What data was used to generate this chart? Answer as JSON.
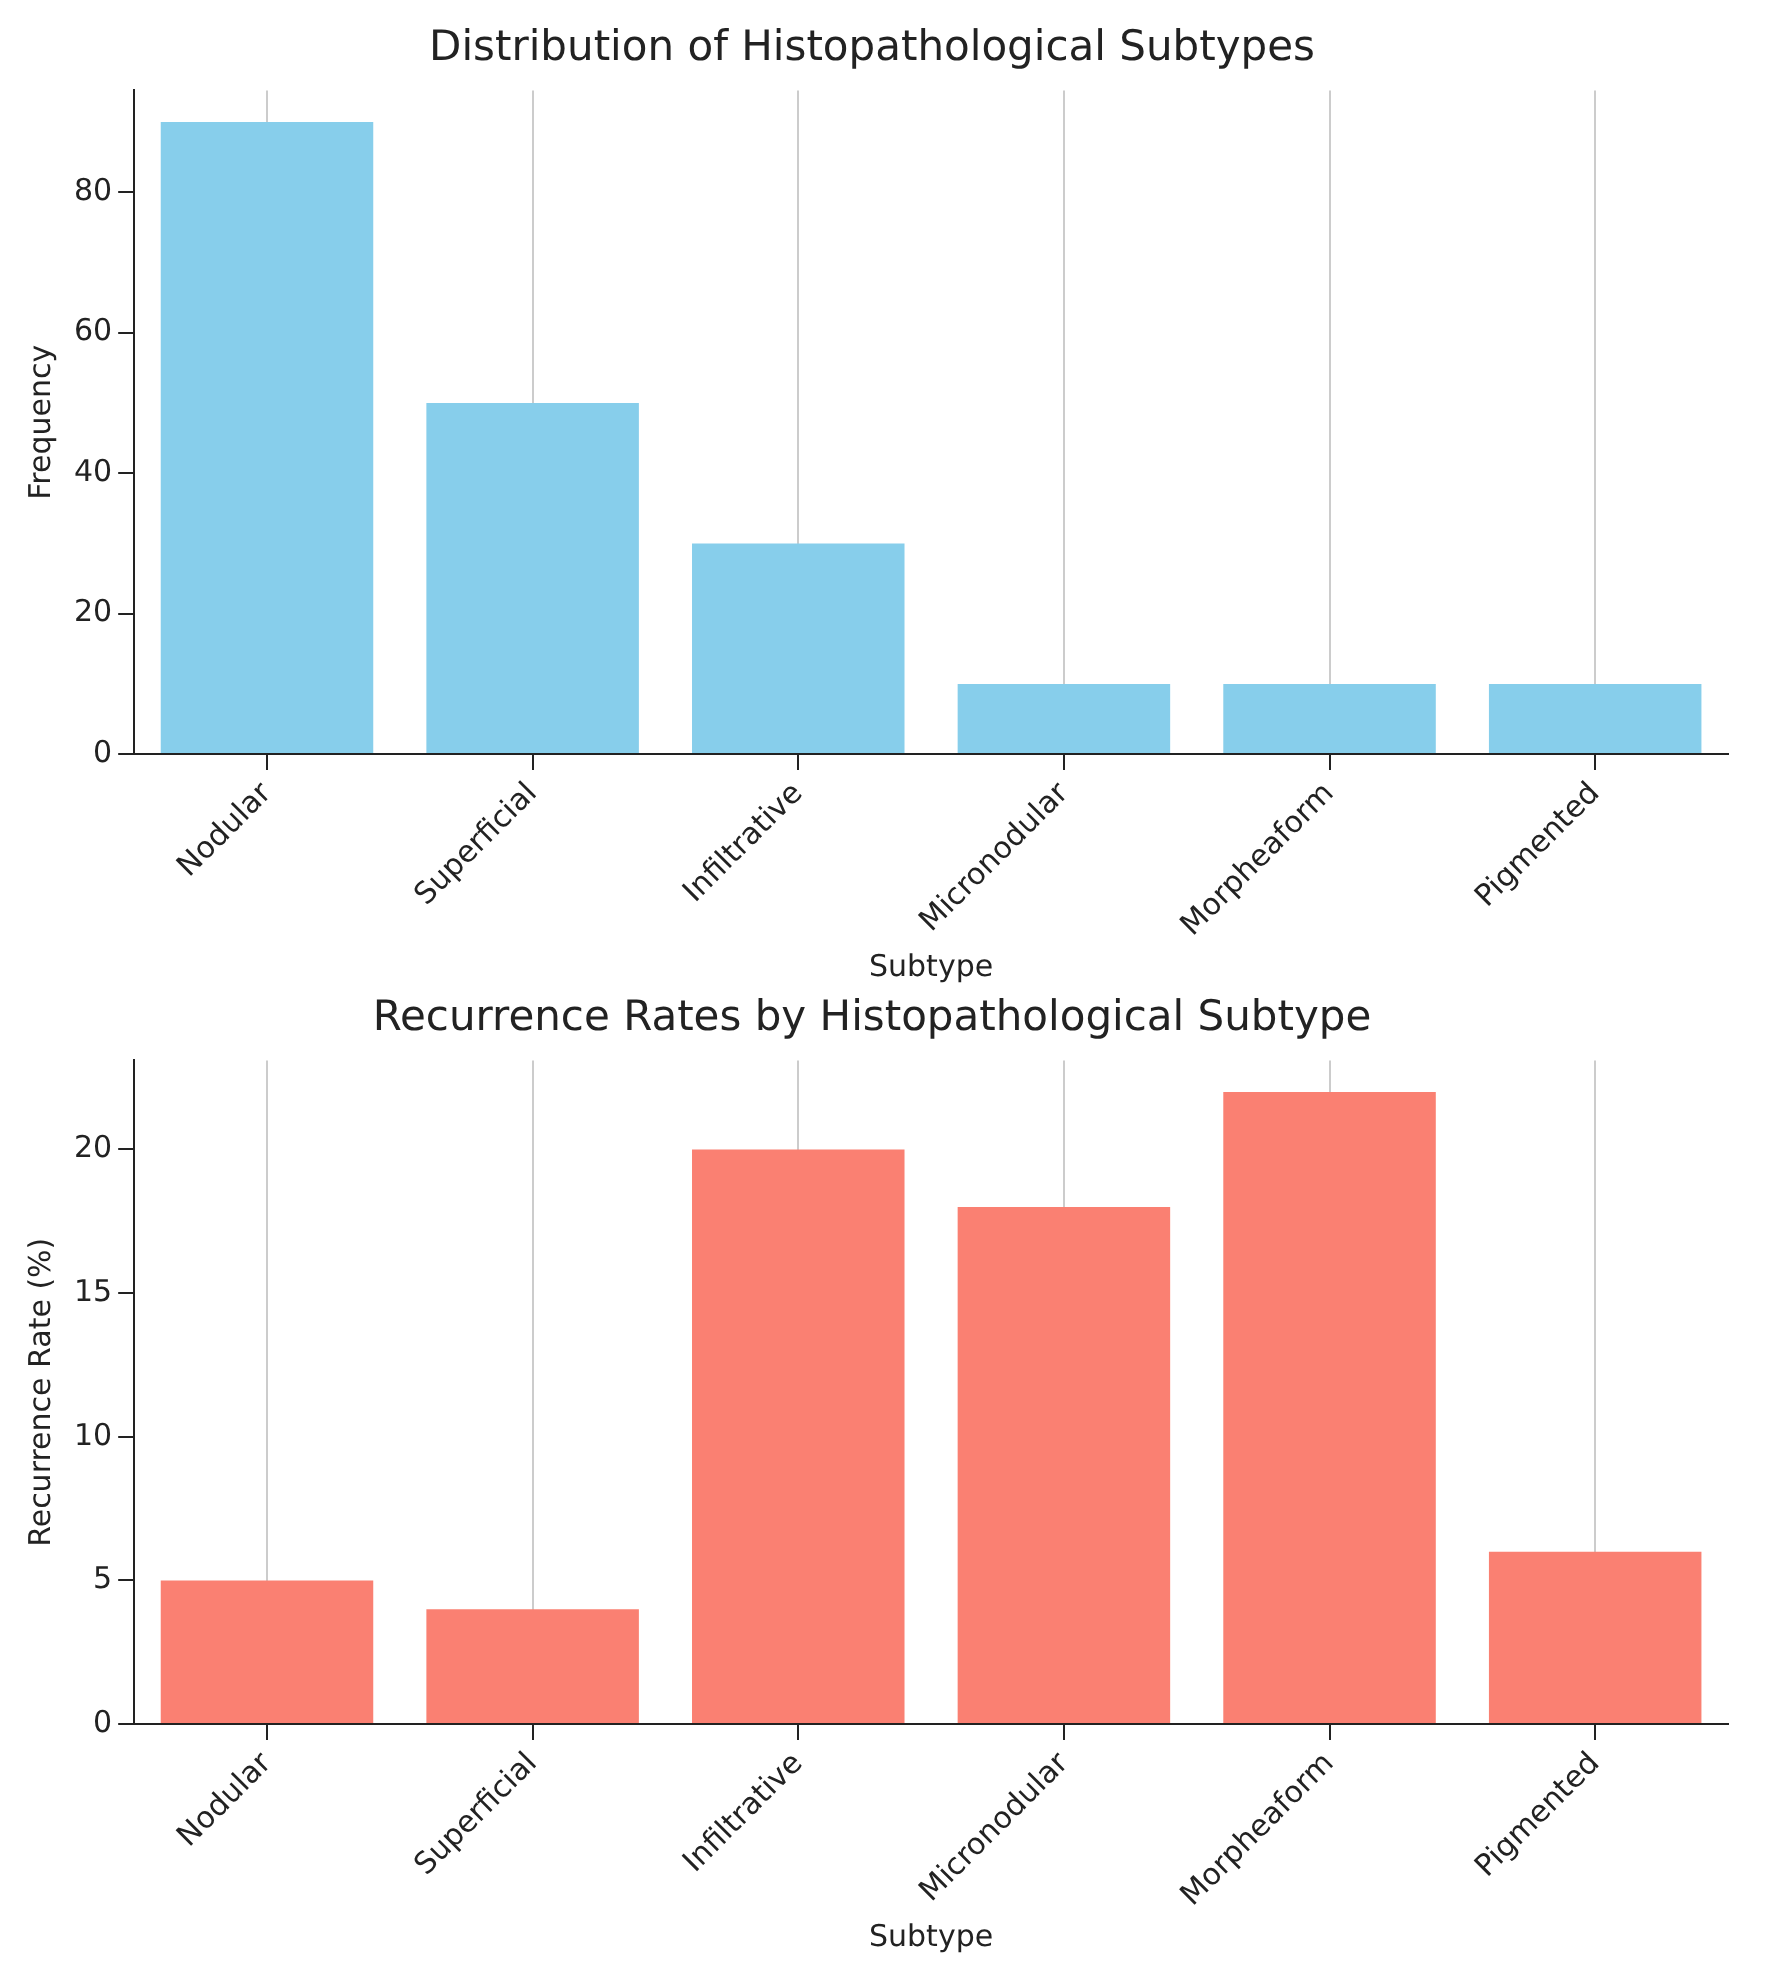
{
  "chart_data": [
    {
      "type": "bar",
      "title": "Distribution of Histopathological Subtypes",
      "xlabel": "Subtype",
      "ylabel": "Frequency",
      "categories": [
        "Nodular",
        "Superficial",
        "Infiltrative",
        "Micronodular",
        "Morpheaform",
        "Pigmented"
      ],
      "values": [
        90,
        50,
        30,
        10,
        10,
        10
      ],
      "color": "#87ceeb",
      "ylim": [
        0,
        94.5
      ],
      "yticks": [
        0,
        20,
        40,
        60,
        80
      ],
      "grid": "x",
      "legend": false
    },
    {
      "type": "bar",
      "title": "Recurrence Rates by Histopathological Subtype",
      "xlabel": "Subtype",
      "ylabel": "Recurrence Rate (%)",
      "categories": [
        "Nodular",
        "Superficial",
        "Infiltrative",
        "Micronodular",
        "Morpheaform",
        "Pigmented"
      ],
      "values": [
        5,
        4,
        20,
        18,
        22,
        6
      ],
      "color": "#fa8072",
      "ylim": [
        0,
        23.1
      ],
      "yticks": [
        0,
        5,
        10,
        15,
        20
      ],
      "grid": "x",
      "legend": false
    }
  ]
}
